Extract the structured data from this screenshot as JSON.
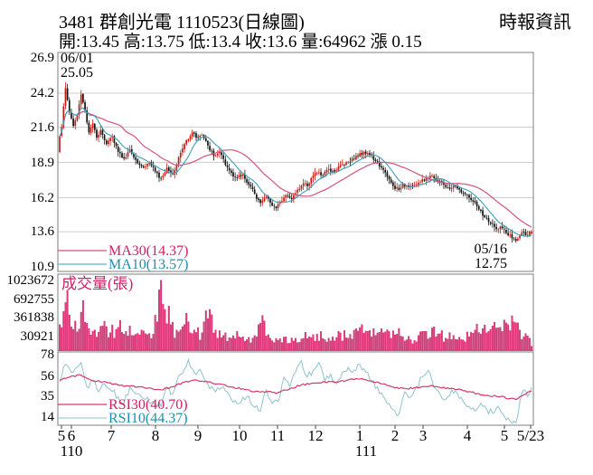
{
  "header": {
    "title": "3481 群創光電 1110523(日線圖)",
    "source": "時報資訊",
    "quote_line": "開:13.45 高:13.75 低:13.4 收:13.6 量:64962 漲 0.15"
  },
  "price_panel": {
    "y_ticks": [
      "26.9",
      "24.2",
      "21.6",
      "18.9",
      "16.2",
      "13.6",
      "10.9"
    ],
    "high_marker": {
      "date": "06/01",
      "price": "25.05"
    },
    "low_marker": {
      "date": "05/16",
      "price": "12.75"
    },
    "legend": [
      {
        "label": "MA30(14.37)",
        "color": "#d21f66"
      },
      {
        "label": "MA10(13.57)",
        "color": "#1e8fae"
      }
    ]
  },
  "volume_panel": {
    "label": "成交量(張)",
    "y_ticks": [
      "1023672",
      "692755",
      "361838",
      "30921"
    ]
  },
  "rsi_panel": {
    "y_ticks": [
      "78",
      "56",
      "35",
      "14"
    ],
    "legend": [
      {
        "label": "RSI30(40.70)",
        "color": "#d21f66"
      },
      {
        "label": "RSI10(44.37)",
        "color": "#1e8fae"
      }
    ]
  },
  "x_axis": {
    "month_labels": [
      {
        "label": "5",
        "x": 68
      },
      {
        "label": "6",
        "x": 79
      },
      {
        "label": "7",
        "x": 123
      },
      {
        "label": "8",
        "x": 172
      },
      {
        "label": "9",
        "x": 219
      },
      {
        "label": "10",
        "x": 265
      },
      {
        "label": "11",
        "x": 307
      },
      {
        "label": "12",
        "x": 349
      },
      {
        "label": "1",
        "x": 398
      },
      {
        "label": "2",
        "x": 437
      },
      {
        "label": "3",
        "x": 468
      },
      {
        "label": "4",
        "x": 517
      },
      {
        "label": "5",
        "x": 558
      },
      {
        "label": "5/23",
        "x": 587
      }
    ],
    "year_labels": [
      {
        "label": "110",
        "x": 79
      },
      {
        "label": "111",
        "x": 405
      }
    ]
  },
  "colors": {
    "up": "#cc1812",
    "down": "#141414",
    "ma30": "#d6527a",
    "ma10": "#3d9fb8",
    "rsi30": "#d43a6a",
    "rsi10": "#8fc3cd",
    "vol_fill": "#de3a7c",
    "vol_stroke": "#c2185c",
    "magenta_text": "#d21f66",
    "cyan_text": "#1e8fae",
    "grid": "#cfcfcf",
    "border": "#7f7f7f"
  },
  "chart_data": {
    "type": "candlestick",
    "title": "3481 群創光電 1110523(日線圖)",
    "meta": {
      "days": 243,
      "period": "110/05 - 111/05/23 (ROC calendar)",
      "grid": "horizontal price gridlines only",
      "legend_position": "inside lower-left of each panel"
    },
    "price_ticks": [
      26.9,
      24.2,
      21.6,
      18.9,
      16.2,
      13.6,
      10.9
    ],
    "volume_ticks": [
      1023672,
      692755,
      361838,
      30921
    ],
    "rsi_ticks": [
      78,
      56,
      35,
      14
    ],
    "key_points": {
      "high_day": 3,
      "high": 25.05,
      "high_date": "06/01",
      "low_day": 234,
      "low": 12.75,
      "low_date": "05/16",
      "last": {
        "open": 13.45,
        "high": 13.75,
        "low": 13.4,
        "close": 13.6,
        "volume": 64962,
        "change": 0.15
      },
      "ma30_last": 14.37,
      "ma10_last": 13.57,
      "rsi30_last": 40.7,
      "rsi10_last": 44.37
    },
    "close_anchors": [
      [
        0,
        20.9
      ],
      [
        1,
        21.6
      ],
      [
        3,
        24.6
      ],
      [
        5,
        22.8
      ],
      [
        7,
        21.7
      ],
      [
        9,
        22.5
      ],
      [
        11,
        24.1
      ],
      [
        13,
        22.9
      ],
      [
        15,
        21.2
      ],
      [
        17,
        21.9
      ],
      [
        19,
        20.8
      ],
      [
        21,
        21.4
      ],
      [
        24,
        20.3
      ],
      [
        27,
        20.9
      ],
      [
        30,
        19.7
      ],
      [
        33,
        19.2
      ],
      [
        36,
        19.9
      ],
      [
        39,
        19.1
      ],
      [
        43,
        18.5
      ],
      [
        46,
        18.9
      ],
      [
        49,
        18.2
      ],
      [
        52,
        17.7
      ],
      [
        55,
        18.5
      ],
      [
        58,
        18.0
      ],
      [
        61,
        19.3
      ],
      [
        65,
        20.6
      ],
      [
        68,
        21.2
      ],
      [
        70,
        20.8
      ],
      [
        73,
        21.0
      ],
      [
        76,
        20.2
      ],
      [
        79,
        19.4
      ],
      [
        82,
        19.7
      ],
      [
        85,
        18.7
      ],
      [
        88,
        18.1
      ],
      [
        91,
        17.7
      ],
      [
        94,
        18.0
      ],
      [
        97,
        17.2
      ],
      [
        100,
        16.5
      ],
      [
        103,
        15.8
      ],
      [
        106,
        16.3
      ],
      [
        109,
        15.6
      ],
      [
        111,
        15.4
      ],
      [
        113,
        15.9
      ],
      [
        116,
        16.4
      ],
      [
        119,
        16.1
      ],
      [
        122,
        16.8
      ],
      [
        125,
        17.3
      ],
      [
        127,
        17.1
      ],
      [
        129,
        17.7
      ],
      [
        132,
        18.1
      ],
      [
        135,
        17.9
      ],
      [
        138,
        18.4
      ],
      [
        141,
        18.2
      ],
      [
        144,
        18.7
      ],
      [
        147,
        18.9
      ],
      [
        150,
        19.2
      ],
      [
        153,
        19.4
      ],
      [
        156,
        19.7
      ],
      [
        159,
        19.5
      ],
      [
        162,
        19.0
      ],
      [
        165,
        18.5
      ],
      [
        168,
        17.8
      ],
      [
        171,
        17.1
      ],
      [
        174,
        16.8
      ],
      [
        176,
        17.3
      ],
      [
        179,
        17.0
      ],
      [
        182,
        17.2
      ],
      [
        185,
        17.4
      ],
      [
        188,
        17.7
      ],
      [
        191,
        17.9
      ],
      [
        194,
        17.5
      ],
      [
        197,
        17.2
      ],
      [
        200,
        16.9
      ],
      [
        203,
        17.1
      ],
      [
        206,
        16.6
      ],
      [
        209,
        16.4
      ],
      [
        212,
        15.9
      ],
      [
        215,
        15.3
      ],
      [
        218,
        14.7
      ],
      [
        221,
        14.2
      ],
      [
        224,
        13.8
      ],
      [
        226,
        14.0
      ],
      [
        229,
        13.5
      ],
      [
        232,
        13.1
      ],
      [
        234,
        12.9
      ],
      [
        236,
        13.3
      ],
      [
        238,
        13.55
      ],
      [
        240,
        13.35
      ],
      [
        242,
        13.6
      ]
    ],
    "volume_anchors": [
      [
        0,
        380000
      ],
      [
        3,
        700000
      ],
      [
        5,
        520000
      ],
      [
        8,
        430000
      ],
      [
        11,
        560000
      ],
      [
        14,
        400000
      ],
      [
        18,
        300000
      ],
      [
        22,
        360000
      ],
      [
        26,
        260000
      ],
      [
        30,
        340000
      ],
      [
        34,
        280000
      ],
      [
        38,
        220000
      ],
      [
        42,
        300000
      ],
      [
        46,
        250000
      ],
      [
        50,
        420000
      ],
      [
        52,
        1023672
      ],
      [
        54,
        600000
      ],
      [
        57,
        380000
      ],
      [
        60,
        300000
      ],
      [
        63,
        350000
      ],
      [
        66,
        420000
      ],
      [
        69,
        300000
      ],
      [
        73,
        260000
      ],
      [
        77,
        600000
      ],
      [
        80,
        300000
      ],
      [
        84,
        220000
      ],
      [
        88,
        180000
      ],
      [
        92,
        200000
      ],
      [
        96,
        160000
      ],
      [
        100,
        220000
      ],
      [
        103,
        400000
      ],
      [
        108,
        180000
      ],
      [
        112,
        150000
      ],
      [
        116,
        200000
      ],
      [
        120,
        140000
      ],
      [
        124,
        170000
      ],
      [
        128,
        200000
      ],
      [
        132,
        240000
      ],
      [
        136,
        160000
      ],
      [
        140,
        200000
      ],
      [
        144,
        260000
      ],
      [
        148,
        180000
      ],
      [
        152,
        320000
      ],
      [
        155,
        380000
      ],
      [
        158,
        280000
      ],
      [
        162,
        220000
      ],
      [
        166,
        260000
      ],
      [
        170,
        180000
      ],
      [
        173,
        240000
      ],
      [
        176,
        200000
      ],
      [
        180,
        160000
      ],
      [
        184,
        220000
      ],
      [
        188,
        280000
      ],
      [
        191,
        330000
      ],
      [
        194,
        240000
      ],
      [
        198,
        180000
      ],
      [
        202,
        220000
      ],
      [
        206,
        160000
      ],
      [
        210,
        200000
      ],
      [
        213,
        300000
      ],
      [
        216,
        240000
      ],
      [
        220,
        280000
      ],
      [
        224,
        330000
      ],
      [
        227,
        280000
      ],
      [
        230,
        380000
      ],
      [
        233,
        420000
      ],
      [
        236,
        300000
      ],
      [
        239,
        250000
      ],
      [
        241,
        180000
      ],
      [
        242,
        64962
      ]
    ],
    "rsi10_anchors": [
      [
        0,
        50
      ],
      [
        3,
        68
      ],
      [
        6,
        60
      ],
      [
        9,
        65
      ],
      [
        11,
        70
      ],
      [
        14,
        45
      ],
      [
        17,
        52
      ],
      [
        20,
        40
      ],
      [
        23,
        48
      ],
      [
        26,
        42
      ],
      [
        30,
        35
      ],
      [
        33,
        28
      ],
      [
        36,
        45
      ],
      [
        40,
        38
      ],
      [
        44,
        32
      ],
      [
        48,
        30
      ],
      [
        52,
        25
      ],
      [
        55,
        45
      ],
      [
        58,
        38
      ],
      [
        62,
        58
      ],
      [
        66,
        73
      ],
      [
        69,
        60
      ],
      [
        72,
        63
      ],
      [
        76,
        48
      ],
      [
        80,
        40
      ],
      [
        84,
        45
      ],
      [
        88,
        32
      ],
      [
        92,
        28
      ],
      [
        96,
        35
      ],
      [
        100,
        24
      ],
      [
        103,
        20
      ],
      [
        106,
        42
      ],
      [
        109,
        28
      ],
      [
        112,
        30
      ],
      [
        115,
        55
      ],
      [
        118,
        45
      ],
      [
        121,
        60
      ],
      [
        124,
        72
      ],
      [
        127,
        55
      ],
      [
        130,
        62
      ],
      [
        133,
        70
      ],
      [
        136,
        50
      ],
      [
        139,
        58
      ],
      [
        142,
        48
      ],
      [
        145,
        60
      ],
      [
        148,
        65
      ],
      [
        151,
        62
      ],
      [
        154,
        68
      ],
      [
        157,
        60
      ],
      [
        160,
        50
      ],
      [
        163,
        45
      ],
      [
        166,
        35
      ],
      [
        169,
        28
      ],
      [
        172,
        20
      ],
      [
        174,
        17
      ],
      [
        177,
        40
      ],
      [
        180,
        35
      ],
      [
        183,
        45
      ],
      [
        186,
        55
      ],
      [
        189,
        62
      ],
      [
        192,
        45
      ],
      [
        195,
        38
      ],
      [
        198,
        32
      ],
      [
        201,
        42
      ],
      [
        204,
        38
      ],
      [
        207,
        30
      ],
      [
        210,
        25
      ],
      [
        213,
        20
      ],
      [
        216,
        28
      ],
      [
        219,
        22
      ],
      [
        222,
        18
      ],
      [
        225,
        25
      ],
      [
        228,
        15
      ],
      [
        231,
        10
      ],
      [
        234,
        8
      ],
      [
        236,
        30
      ],
      [
        238,
        42
      ],
      [
        240,
        35
      ],
      [
        242,
        44.37
      ]
    ],
    "rsi30_anchors": [
      [
        0,
        52
      ],
      [
        6,
        56
      ],
      [
        11,
        57
      ],
      [
        16,
        52
      ],
      [
        22,
        50
      ],
      [
        28,
        48
      ],
      [
        34,
        46
      ],
      [
        40,
        45
      ],
      [
        46,
        44
      ],
      [
        52,
        42
      ],
      [
        58,
        45
      ],
      [
        64,
        50
      ],
      [
        70,
        52
      ],
      [
        76,
        50
      ],
      [
        82,
        48
      ],
      [
        88,
        45
      ],
      [
        94,
        43
      ],
      [
        100,
        40
      ],
      [
        106,
        40
      ],
      [
        112,
        39
      ],
      [
        118,
        43
      ],
      [
        124,
        47
      ],
      [
        130,
        49
      ],
      [
        136,
        50
      ],
      [
        142,
        50
      ],
      [
        148,
        52
      ],
      [
        154,
        53
      ],
      [
        160,
        51
      ],
      [
        166,
        48
      ],
      [
        172,
        44
      ],
      [
        178,
        43
      ],
      [
        184,
        44
      ],
      [
        190,
        46
      ],
      [
        196,
        44
      ],
      [
        202,
        43
      ],
      [
        208,
        41
      ],
      [
        214,
        38
      ],
      [
        220,
        36
      ],
      [
        226,
        35
      ],
      [
        231,
        33
      ],
      [
        234,
        32
      ],
      [
        238,
        37
      ],
      [
        242,
        40.7
      ]
    ]
  }
}
